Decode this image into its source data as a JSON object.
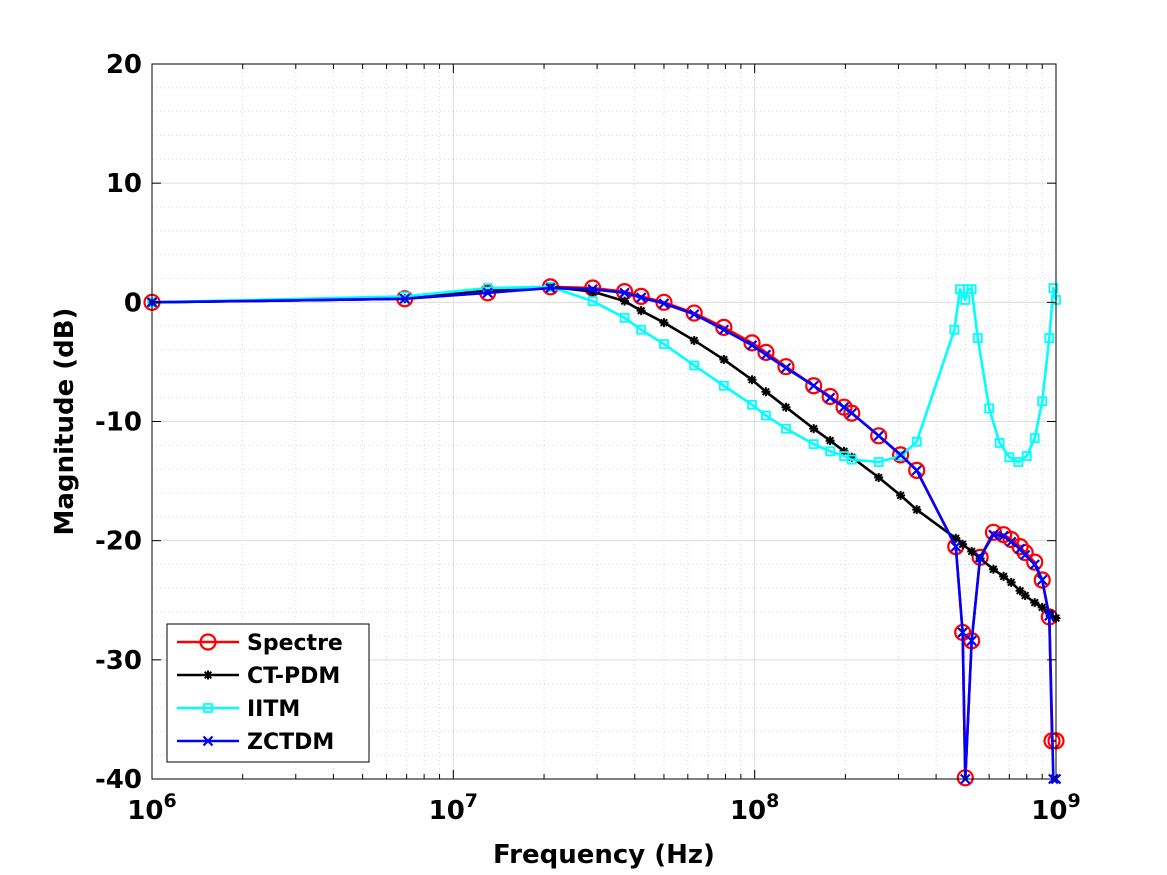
{
  "chart_data": {
    "type": "line",
    "title": "",
    "xlabel": "Frequency (Hz)",
    "ylabel": "Magnitude (dB)",
    "xscale": "log",
    "xlim": [
      1000000,
      1000000000
    ],
    "ylim": [
      -40,
      20
    ],
    "grid": true,
    "legend_position": "bottom-left",
    "x_tick_labels": [
      {
        "value": 1000000,
        "base": "10",
        "exp": "6"
      },
      {
        "value": 10000000,
        "base": "10",
        "exp": "7"
      },
      {
        "value": 100000000,
        "base": "10",
        "exp": "8"
      },
      {
        "value": 1000000000,
        "base": "10",
        "exp": "9"
      }
    ],
    "y_ticks": [
      20,
      10,
      0,
      -10,
      -20,
      -30,
      -40
    ],
    "y_tick_labels": [
      "20",
      "10",
      "0",
      "-10",
      "-20",
      "-30",
      "-40"
    ],
    "series": [
      {
        "name": "Spectre",
        "color": "#ff0000",
        "marker": "circle",
        "x": [
          1000000,
          6900000,
          13000000,
          21000000,
          29000000,
          37000000,
          42000000,
          50000000,
          63000000,
          79000000,
          98000000,
          109000000,
          127000000,
          157000000,
          178000000,
          198000000,
          210000000,
          258000000,
          305000000,
          345000000,
          465000000,
          490000000,
          500000000,
          525000000,
          560000000,
          620000000,
          670000000,
          710000000,
          760000000,
          790000000,
          850000000,
          900000000,
          950000000,
          970000000,
          1000000000
        ],
        "y": [
          0,
          0.3,
          0.8,
          1.3,
          1.2,
          0.9,
          0.5,
          0,
          -0.9,
          -2.1,
          -3.4,
          -4.2,
          -5.4,
          -7.0,
          -7.9,
          -8.8,
          -9.3,
          -11.2,
          -12.8,
          -14.1,
          -20.5,
          -27.7,
          -39.9,
          -28.4,
          -21.4,
          -19.3,
          -19.5,
          -19.9,
          -20.5,
          -21.0,
          -21.8,
          -23.3,
          -26.4,
          -36.8,
          -36.8
        ]
      },
      {
        "name": "CT-PDM",
        "color": "#000000",
        "marker": "asterisk",
        "x": [
          1000000,
          6900000,
          13000000,
          21000000,
          29000000,
          37000000,
          42000000,
          50000000,
          63000000,
          79000000,
          98000000,
          109000000,
          127000000,
          157000000,
          178000000,
          198000000,
          210000000,
          258000000,
          305000000,
          345000000,
          465000000,
          490000000,
          525000000,
          560000000,
          620000000,
          670000000,
          710000000,
          760000000,
          790000000,
          850000000,
          900000000,
          950000000,
          1000000000
        ],
        "y": [
          0,
          0.3,
          1.0,
          1.3,
          0.9,
          0.1,
          -0.7,
          -1.7,
          -3.2,
          -4.8,
          -6.5,
          -7.5,
          -8.8,
          -10.6,
          -11.6,
          -12.5,
          -13.0,
          -14.7,
          -16.2,
          -17.4,
          -19.8,
          -20.3,
          -20.9,
          -21.5,
          -22.4,
          -23.0,
          -23.5,
          -24.2,
          -24.6,
          -25.2,
          -25.6,
          -26.1,
          -26.5
        ]
      },
      {
        "name": "IITM",
        "color": "#00ffff",
        "marker": "square",
        "x": [
          1000000,
          6900000,
          13000000,
          21000000,
          29000000,
          37000000,
          42000000,
          50000000,
          63000000,
          79000000,
          98000000,
          109000000,
          127000000,
          157000000,
          178000000,
          198000000,
          210000000,
          258000000,
          305000000,
          345000000,
          460000000,
          480000000,
          500000000,
          510000000,
          525000000,
          550000000,
          600000000,
          650000000,
          700000000,
          750000000,
          800000000,
          850000000,
          900000000,
          950000000,
          980000000,
          1000000000
        ],
        "y": [
          0,
          0.5,
          1.2,
          1.3,
          0.1,
          -1.3,
          -2.3,
          -3.5,
          -5.3,
          -7.0,
          -8.6,
          -9.5,
          -10.6,
          -11.9,
          -12.5,
          -12.9,
          -13.2,
          -13.4,
          -12.9,
          -11.7,
          -2.3,
          1.1,
          0.2,
          1.1,
          1.1,
          -3.0,
          -8.9,
          -11.8,
          -13.0,
          -13.4,
          -12.9,
          -11.4,
          -8.3,
          -3.0,
          1.2,
          0.2
        ]
      },
      {
        "name": "ZCTDM",
        "color": "#0000ff",
        "marker": "x",
        "x": [
          1000000,
          6900000,
          13000000,
          21000000,
          29000000,
          37000000,
          42000000,
          50000000,
          63000000,
          79000000,
          98000000,
          109000000,
          127000000,
          157000000,
          178000000,
          198000000,
          210000000,
          258000000,
          305000000,
          345000000,
          465000000,
          490000000,
          500000000,
          525000000,
          560000000,
          620000000,
          670000000,
          710000000,
          760000000,
          790000000,
          850000000,
          900000000,
          950000000,
          980000000,
          1000000000
        ],
        "y": [
          0,
          0.3,
          0.8,
          1.2,
          1.1,
          0.8,
          0.4,
          -0.1,
          -1.0,
          -2.3,
          -3.6,
          -4.4,
          -5.5,
          -7.0,
          -8.0,
          -8.8,
          -9.3,
          -11.2,
          -12.8,
          -14.1,
          -20.5,
          -27.7,
          -40.5,
          -28.4,
          -21.4,
          -19.5,
          -19.6,
          -20.1,
          -20.7,
          -21.2,
          -22.0,
          -23.3,
          -26.3,
          -40.5,
          -40.5
        ]
      }
    ]
  }
}
